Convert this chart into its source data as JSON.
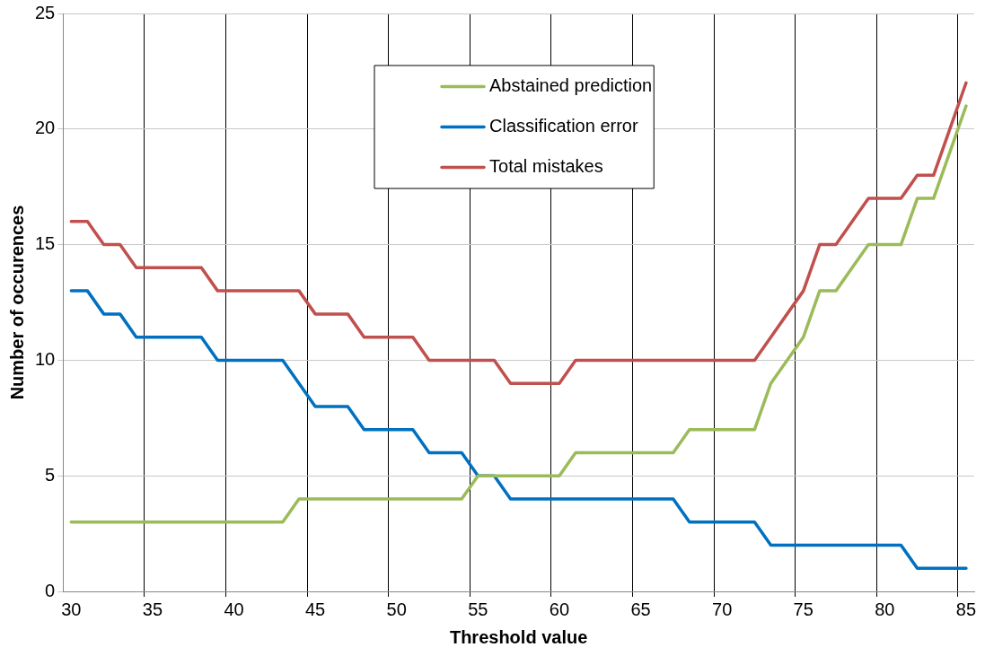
{
  "chart_data": {
    "type": "line",
    "xlabel": "Threshold value",
    "ylabel": "Number of occurences",
    "categories": [
      "30",
      null,
      null,
      null,
      null,
      "35",
      null,
      null,
      null,
      null,
      "40",
      null,
      null,
      null,
      null,
      "45",
      null,
      null,
      null,
      null,
      "50",
      null,
      null,
      null,
      null,
      "55",
      null,
      null,
      null,
      null,
      "60",
      null,
      null,
      null,
      null,
      "65",
      null,
      null,
      null,
      null,
      "70",
      null,
      null,
      null,
      null,
      "75",
      null,
      null,
      null,
      null,
      "80",
      null,
      null,
      null,
      null,
      "85"
    ],
    "series": [
      {
        "name": "Abstained prediction",
        "color": "#9bbb59",
        "values": [
          3,
          3,
          3,
          3,
          3,
          3,
          3,
          3,
          3,
          3,
          3,
          3,
          3,
          3,
          4,
          4,
          4,
          4,
          4,
          4,
          4,
          4,
          4,
          4,
          4,
          5,
          5,
          5,
          5,
          5,
          5,
          6,
          6,
          6,
          6,
          6,
          6,
          6,
          7,
          7,
          7,
          7,
          7,
          9,
          10,
          11,
          13,
          13,
          14,
          15,
          15,
          15,
          17,
          17,
          19,
          21
        ]
      },
      {
        "name": "Classification error",
        "color": "#0070c0",
        "values": [
          13,
          13,
          12,
          12,
          11,
          11,
          11,
          11,
          11,
          10,
          10,
          10,
          10,
          10,
          9,
          8,
          8,
          8,
          7,
          7,
          7,
          7,
          6,
          6,
          6,
          5,
          5,
          4,
          4,
          4,
          4,
          4,
          4,
          4,
          4,
          4,
          4,
          4,
          3,
          3,
          3,
          3,
          3,
          2,
          2,
          2,
          2,
          2,
          2,
          2,
          2,
          2,
          1,
          1,
          1,
          1
        ]
      },
      {
        "name": "Total mistakes",
        "color": "#c0504d",
        "values": [
          16,
          16,
          15,
          15,
          14,
          14,
          14,
          14,
          14,
          13,
          13,
          13,
          13,
          13,
          13,
          12,
          12,
          12,
          11,
          11,
          11,
          11,
          10,
          10,
          10,
          10,
          10,
          9,
          9,
          9,
          9,
          10,
          10,
          10,
          10,
          10,
          10,
          10,
          10,
          10,
          10,
          10,
          10,
          11,
          12,
          13,
          15,
          15,
          16,
          17,
          17,
          17,
          18,
          18,
          20,
          22
        ]
      }
    ],
    "ylim": [
      0,
      25
    ],
    "yticks": [
      0,
      5,
      10,
      15,
      20,
      25
    ],
    "grid": true,
    "legend": "top",
    "marker": "none",
    "line_style": "solid"
  }
}
